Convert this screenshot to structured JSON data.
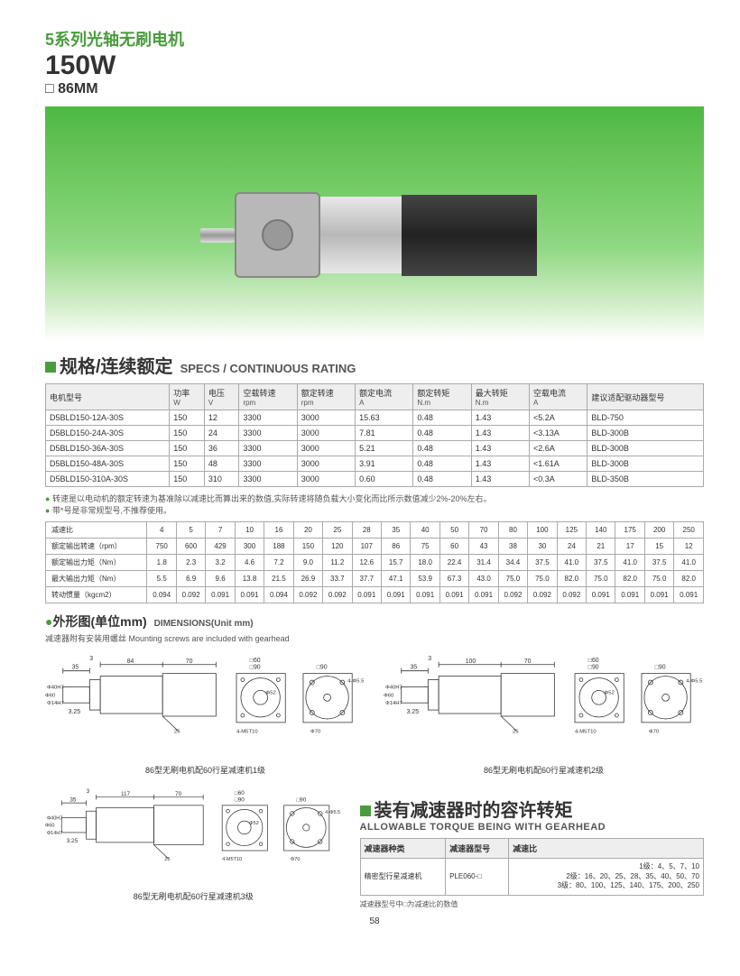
{
  "header": {
    "title_cn": "5系列光轴无刷电机",
    "watt": "150W",
    "dim": "□ 86MM"
  },
  "section_specs": {
    "title_cn": "规格/连续额定",
    "title_en": "SPECS / CONTINUOUS RATING"
  },
  "specs_table": {
    "headers": [
      {
        "cn": "电机型号",
        "sub": ""
      },
      {
        "cn": "功率",
        "sub": "W"
      },
      {
        "cn": "电压",
        "sub": "V"
      },
      {
        "cn": "空载转速",
        "sub": "rpm"
      },
      {
        "cn": "额定转速",
        "sub": "rpm"
      },
      {
        "cn": "额定电流",
        "sub": "A"
      },
      {
        "cn": "额定转矩",
        "sub": "N.m"
      },
      {
        "cn": "最大转矩",
        "sub": "N.m"
      },
      {
        "cn": "空载电流",
        "sub": "A"
      },
      {
        "cn": "建议适配驱动器型号",
        "sub": ""
      }
    ],
    "rows": [
      [
        "D5BLD150-12A-30S",
        "150",
        "12",
        "3300",
        "3000",
        "15.63",
        "0.48",
        "1.43",
        "<5.2A",
        "BLD-750"
      ],
      [
        "D5BLD150-24A-30S",
        "150",
        "24",
        "3300",
        "3000",
        "7.81",
        "0.48",
        "1.43",
        "<3.13A",
        "BLD-300B"
      ],
      [
        "D5BLD150-36A-30S",
        "150",
        "36",
        "3300",
        "3000",
        "5.21",
        "0.48",
        "1.43",
        "<2.6A",
        "BLD-300B"
      ],
      [
        "D5BLD150-48A-30S",
        "150",
        "48",
        "3300",
        "3000",
        "3.91",
        "0.48",
        "1.43",
        "<1.61A",
        "BLD-300B"
      ],
      [
        "D5BLD150-310A-30S",
        "150",
        "310",
        "3300",
        "3000",
        "0.60",
        "0.48",
        "1.43",
        "<0.3A",
        "BLD-350B"
      ]
    ]
  },
  "notes": {
    "n1": "转速是以电动机的额定转速为基准除以减速比而算出来的数值,实际转速将随负载大小变化而比所示数值减少2%-20%左右。",
    "n2": "带*号是非常规型号,不推荐使用。"
  },
  "ratio_table": {
    "row_labels": [
      "减速比",
      "额定输出转速（rpm）",
      "额定输出力矩（Nm）",
      "最大输出力矩（Nm）",
      "转动惯量（kgcm2）"
    ],
    "cols": [
      "4",
      "5",
      "7",
      "10",
      "16",
      "20",
      "25",
      "28",
      "35",
      "40",
      "50",
      "70",
      "80",
      "100",
      "125",
      "140",
      "175",
      "200",
      "250"
    ],
    "data": [
      [
        "750",
        "600",
        "429",
        "300",
        "188",
        "150",
        "120",
        "107",
        "86",
        "75",
        "60",
        "43",
        "38",
        "30",
        "24",
        "21",
        "17",
        "15",
        "12"
      ],
      [
        "1.8",
        "2.3",
        "3.2",
        "4.6",
        "7.2",
        "9.0",
        "11.2",
        "12.6",
        "15.7",
        "18.0",
        "22.4",
        "31.4",
        "34.4",
        "37.5",
        "41.0",
        "37.5",
        "41.0",
        "37.5",
        "41.0"
      ],
      [
        "5.5",
        "6.9",
        "9.6",
        "13.8",
        "21.5",
        "26.9",
        "33.7",
        "37.7",
        "47.1",
        "53.9",
        "67.3",
        "43.0",
        "75.0",
        "75.0",
        "82.0",
        "75.0",
        "82.0",
        "75.0",
        "82.0"
      ],
      [
        "0.094",
        "0.092",
        "0.091",
        "0.091",
        "0.094",
        "0.092",
        "0.092",
        "0.091",
        "0.091",
        "0.091",
        "0.091",
        "0.091",
        "0.092",
        "0.092",
        "0.092",
        "0.091",
        "0.091",
        "0.091",
        "0.091"
      ]
    ]
  },
  "dimensions": {
    "title_cn": "外形图(单位mm)",
    "title_en": "DIMENSIONS(Unit mm)",
    "note": "减速器附有安装用螺丝  Mounting screws are included with gearhead",
    "cap1": "86型无刷电机配60行星减速机1级",
    "cap2": "86型无刷电机配60行星减速机2级",
    "cap3": "86型无刷电机配60行星减速机3级"
  },
  "gearhead": {
    "title_cn": "装有减速器时的容许转矩",
    "title_en": "ALLOWABLE TORQUE BEING WITH GEARHEAD",
    "headers": [
      "减速器种类",
      "减速器型号",
      "减速比"
    ],
    "type": "精密型行星减速机",
    "model": "PLE060-□",
    "ratios": "1级：4、5、7、10\n2级：16、20、25、28、35、40、50、70\n3级：80、100、125、140、175、200、250",
    "foot": "减速器型号中□为减速比的数值"
  },
  "page_num": "58",
  "drawing_dims": {
    "d1": {
      "a": "35",
      "b": "84",
      "c": "70",
      "sq": "□90",
      "sq2": "□60",
      "holes": "4-M5T10",
      "circ": "Φ70",
      "thru": "4-Φ5.5",
      "shaft": "Φ14H7",
      "hub": "Φ40H7",
      "bore": "Φ52",
      "side": "Φ60",
      "dep": "3",
      "step": "3.25",
      "wire": "25"
    },
    "d2": {
      "a": "35",
      "b": "100",
      "c": "70",
      "sq": "□90",
      "sq2": "□60",
      "holes": "4-M5T10",
      "circ": "Φ70",
      "thru": "4-Φ5.5",
      "shaft": "Φ14H7",
      "hub": "Φ40H7",
      "bore": "Φ52",
      "side": "Φ60",
      "dep": "3",
      "step": "3.25",
      "wire": "25"
    },
    "d3": {
      "a": "35",
      "b": "117",
      "c": "70",
      "sq": "□90",
      "sq2": "□60",
      "holes": "4-M5T10",
      "circ": "Φ70",
      "thru": "4-Φ5.5",
      "shaft": "Φ14H7",
      "hub": "Φ40H7",
      "bore": "Φ52",
      "side": "Φ60",
      "dep": "3",
      "step": "3.25",
      "wire": "25"
    }
  }
}
